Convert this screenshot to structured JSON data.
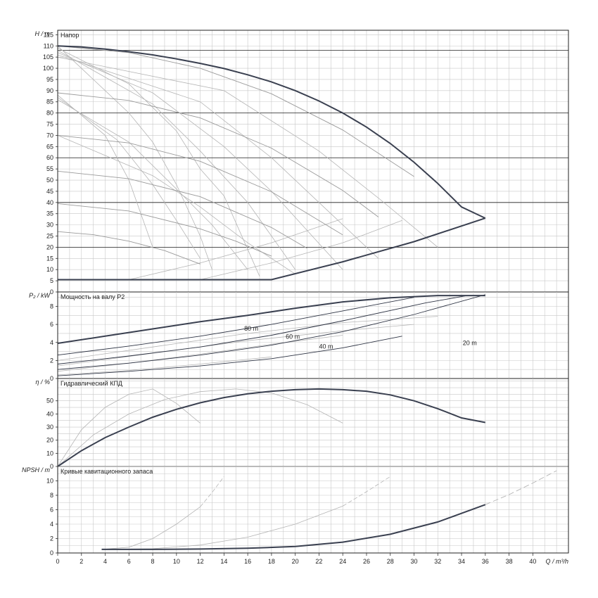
{
  "chart_data": {
    "type": "line",
    "x_axis": {
      "label_symbol": "Q",
      "label_unit": "m³/h",
      "range": [
        0,
        43
      ],
      "ticks": [
        "0",
        "2",
        "4",
        "6",
        "8",
        "10",
        "12",
        "14",
        "16",
        "18",
        "20",
        "22",
        "24",
        "26",
        "28",
        "30",
        "32",
        "34",
        "36",
        "38",
        "40"
      ]
    },
    "panels": [
      {
        "id": "head",
        "title": "Напор",
        "y_symbol": "H",
        "y_unit": "m",
        "ylim": [
          0,
          117
        ],
        "ticks": [
          "0",
          "5",
          "10",
          "15",
          "20",
          "25",
          "30",
          "35",
          "40",
          "45",
          "50",
          "55",
          "60",
          "65",
          "70",
          "75",
          "80",
          "85",
          "90",
          "95",
          "100",
          "105",
          "110",
          "115"
        ],
        "reference_lines": [
          20,
          40,
          60,
          80,
          108
        ],
        "envelope_max": {
          "x": [
            0,
            2,
            4,
            6,
            8,
            10,
            12,
            14,
            16,
            18,
            20,
            22,
            24,
            26,
            28,
            30,
            32,
            34,
            36
          ],
          "y": [
            110,
            109.5,
            108.6,
            107.4,
            106,
            104.2,
            102.2,
            99.9,
            97.1,
            93.9,
            90,
            85.4,
            80,
            73.7,
            66.4,
            58,
            48.5,
            38,
            33
          ]
        },
        "envelope_min": {
          "x": [
            0,
            6,
            12,
            18,
            24,
            30,
            36
          ],
          "y": [
            5.5,
            5.5,
            5.5,
            5.5,
            13.5,
            22.5,
            33
          ]
        },
        "speed_curves": [
          {
            "x": [
              0,
              6,
              12,
              18,
              24,
              30
            ],
            "y": [
              110,
              107,
              100,
              88.6,
              72.4,
              51.6
            ]
          },
          {
            "x": [
              0,
              6,
              12,
              18,
              24,
              27
            ],
            "y": [
              89,
              85.6,
              77.8,
              64.3,
              45.4,
              33.5
            ]
          },
          {
            "x": [
              0,
              6,
              12,
              18,
              24
            ],
            "y": [
              70,
              66.6,
              58.4,
              44.8,
              25.5
            ]
          },
          {
            "x": [
              0,
              6,
              12,
              18,
              21
            ],
            "y": [
              54,
              50.6,
              42.6,
              28.8,
              19.5
            ]
          },
          {
            "x": [
              0,
              6,
              12,
              15,
              18
            ],
            "y": [
              39.5,
              36.2,
              28.2,
              22.7,
              16
            ]
          },
          {
            "x": [
              0,
              3,
              6,
              9,
              12
            ],
            "y": [
              27,
              25.6,
              22.7,
              18.5,
              12.5
            ]
          }
        ],
        "max_speed_family": [
          {
            "x": [
              0,
              6,
              8,
              10,
              12,
              13
            ],
            "y": [
              110,
              80,
              67,
              48,
              25,
              10
            ]
          },
          {
            "x": [
              0,
              6,
              10,
              12,
              14,
              17
            ],
            "y": [
              109,
              93,
              72,
              55,
              43,
              7
            ]
          },
          {
            "x": [
              0,
              8,
              12,
              16,
              20
            ],
            "y": [
              108,
              84,
              63,
              40,
              10
            ]
          },
          {
            "x": [
              0,
              8,
              14,
              18,
              24
            ],
            "y": [
              107,
              89,
              65,
              45,
              10
            ]
          },
          {
            "x": [
              0,
              12,
              18,
              22,
              27
            ],
            "y": [
              106,
              85,
              60,
              40,
              15
            ]
          },
          {
            "x": [
              0,
              14,
              22,
              27,
              32
            ],
            "y": [
              105,
              90,
              63,
              42,
              20
            ]
          }
        ],
        "mid_speed_family": [
          {
            "x": [
              0,
              4,
              6,
              7,
              8
            ],
            "y": [
              88,
              70,
              50,
              35,
              20
            ]
          },
          {
            "x": [
              0,
              5,
              8,
              10,
              12
            ],
            "y": [
              87,
              68,
              48,
              32,
              15
            ]
          },
          {
            "x": [
              0,
              6,
              10,
              13,
              16
            ],
            "y": [
              86,
              67,
              46,
              30,
              10
            ]
          },
          {
            "x": [
              0,
              8,
              12,
              16,
              20
            ],
            "y": [
              70,
              52,
              38,
              22,
              8
            ]
          }
        ],
        "system_curves": [
          {
            "x": [
              6,
              12,
              18,
              24
            ],
            "y": [
              5.5,
              13,
              22,
              32.8
            ]
          },
          {
            "x": [
              12,
              18,
              24,
              29
            ],
            "y": [
              5.5,
              13,
              22,
              32
            ]
          }
        ]
      },
      {
        "id": "power",
        "title": "Мощность на валу P2",
        "y_symbol": "P₂",
        "y_unit": "kW",
        "ylim": [
          0,
          9.6
        ],
        "ticks": [
          "0",
          "2",
          "4",
          "6",
          "8"
        ],
        "envelope_max": {
          "x": [
            0,
            4,
            8,
            12,
            16,
            20,
            24,
            28,
            32,
            36
          ],
          "y": [
            3.9,
            4.7,
            5.5,
            6.3,
            7.0,
            7.8,
            8.5,
            8.95,
            9.2,
            9.2
          ]
        },
        "head_curves": [
          {
            "label": "80 m",
            "label_x": 15.7,
            "label_y": 5.3,
            "x": [
              0,
              6,
              12,
              18,
              24,
              30
            ],
            "y": [
              2.6,
              3.6,
              4.7,
              6.0,
              7.5,
              9.0
            ]
          },
          {
            "label": "60 m",
            "label_x": 19.2,
            "label_y": 4.4,
            "x": [
              0,
              6,
              12,
              18,
              24,
              31,
              34.5
            ],
            "y": [
              1.6,
              2.5,
              3.5,
              4.8,
              6.4,
              8.4,
              9.2
            ]
          },
          {
            "label": "40 m",
            "label_x": 22.0,
            "label_y": 3.3,
            "x": [
              0,
              6,
              12,
              18,
              24,
              30,
              36
            ],
            "y": [
              1.0,
              1.7,
              2.6,
              3.7,
              5.2,
              7.1,
              9.3
            ]
          },
          {
            "label": "20 m",
            "label_x": 34.1,
            "label_y": 3.7,
            "x": [
              0,
              6,
              12,
              18,
              24,
              29
            ],
            "y": [
              0.3,
              0.8,
              1.4,
              2.2,
              3.4,
              4.7
            ]
          }
        ],
        "partial_speed_curves": [
          {
            "x": [
              0,
              8,
              16,
              24,
              32
            ],
            "y": [
              2.0,
              3.5,
              5.0,
              6.2,
              6.9
            ]
          },
          {
            "x": [
              0,
              8,
              16,
              24,
              30
            ],
            "y": [
              1.4,
              2.8,
              4.2,
              5.3,
              6.0
            ]
          },
          {
            "x": [
              0,
              6,
              12,
              18,
              24
            ],
            "y": [
              0.8,
              1.7,
              2.7,
              3.8,
              4.8
            ]
          },
          {
            "x": [
              0,
              6,
              12,
              18
            ],
            "y": [
              0.4,
              0.9,
              1.6,
              2.4
            ]
          }
        ]
      },
      {
        "id": "efficiency",
        "title": "Гидравлический КПД",
        "y_symbol": "η",
        "y_unit": "%",
        "ylim": [
          0,
          67
        ],
        "ticks": [
          "0",
          "10",
          "20",
          "30",
          "40",
          "50"
        ],
        "main_curve": {
          "x": [
            0,
            2,
            4,
            6,
            8,
            10,
            12,
            14,
            16,
            18,
            20,
            22,
            24,
            26,
            28,
            30,
            32,
            34,
            36
          ],
          "y": [
            0,
            12,
            22,
            30,
            37.5,
            43.5,
            48.5,
            52.5,
            55.3,
            57.3,
            58.5,
            59,
            58.5,
            57.3,
            54.5,
            50,
            44,
            37,
            33.5
          ]
        },
        "partial_curves": [
          {
            "x": [
              0,
              2,
              4,
              6,
              8,
              10,
              12
            ],
            "y": [
              0,
              28,
              45,
              55,
              59,
              48,
              33
            ]
          },
          {
            "x": [
              0,
              3,
              6,
              9,
              12,
              15,
              18,
              21,
              24
            ],
            "y": [
              0,
              24,
              40,
              51,
              57,
              59,
              56,
              47,
              33
            ]
          }
        ]
      },
      {
        "id": "npsh",
        "title": "Кривые кавитационного запаса",
        "y_symbol": "NPSH",
        "y_unit": "m",
        "ylim": [
          0,
          12
        ],
        "ticks": [
          "0",
          "2",
          "4",
          "6",
          "8",
          "10"
        ],
        "main_curve": {
          "x": [
            3.7,
            8,
            12,
            16,
            20,
            24,
            28,
            32,
            36
          ],
          "y": [
            0.5,
            0.5,
            0.55,
            0.65,
            0.9,
            1.5,
            2.6,
            4.3,
            6.7
          ]
        },
        "extension_curve": {
          "x": [
            36,
            38,
            40,
            42
          ],
          "y": [
            6.7,
            8.1,
            9.7,
            11.4
          ]
        },
        "partial_curves": [
          {
            "x": [
              3.7,
              6,
              8,
              10,
              12
            ],
            "y": [
              0.5,
              0.8,
              2.0,
              4.0,
              6.4
            ]
          },
          {
            "x": [
              4,
              8,
              12,
              16,
              20,
              24
            ],
            "y": [
              0.5,
              0.6,
              1.1,
              2.2,
              4.0,
              6.5
            ]
          }
        ],
        "partial_extensions": [
          {
            "x": [
              12,
              13,
              14
            ],
            "y": [
              6.4,
              8.4,
              10.6
            ]
          },
          {
            "x": [
              24,
              26,
              28
            ],
            "y": [
              6.5,
              8.5,
              10.6
            ]
          }
        ]
      }
    ]
  }
}
